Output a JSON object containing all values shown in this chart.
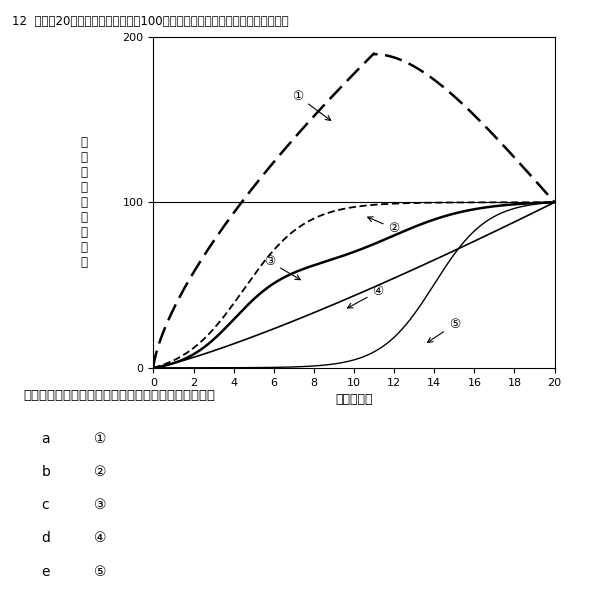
{
  "title_number": "12",
  "title_text": "縦軸に20歳時の発達・発育量を100％としたときの値、横軸に年齢を示す。",
  "ylabel": "発\n達\n・\n発\n育\n量\n（\n％\n）",
  "xlabel": "年齢（歳）",
  "xlim": [
    0,
    20
  ],
  "ylim": [
    0,
    200
  ],
  "yticks": [
    0,
    100,
    200
  ],
  "xticks": [
    0,
    2,
    4,
    6,
    8,
    10,
    12,
    14,
    16,
    18,
    20
  ],
  "hline_y": 100,
  "question_text": "神経系の正常な発達・発育を示しているのはどれか。",
  "choice_letters": [
    "a",
    "b",
    "c",
    "d",
    "e"
  ],
  "choice_numbers": [
    "①",
    "②",
    "③",
    "④",
    "⑤"
  ],
  "curve1_label": "①",
  "curve2_label": "②",
  "curve3_label": "③",
  "curve4_label": "④",
  "curve5_label": "⑤",
  "bg_color": "#ffffff",
  "line_color": "#000000"
}
